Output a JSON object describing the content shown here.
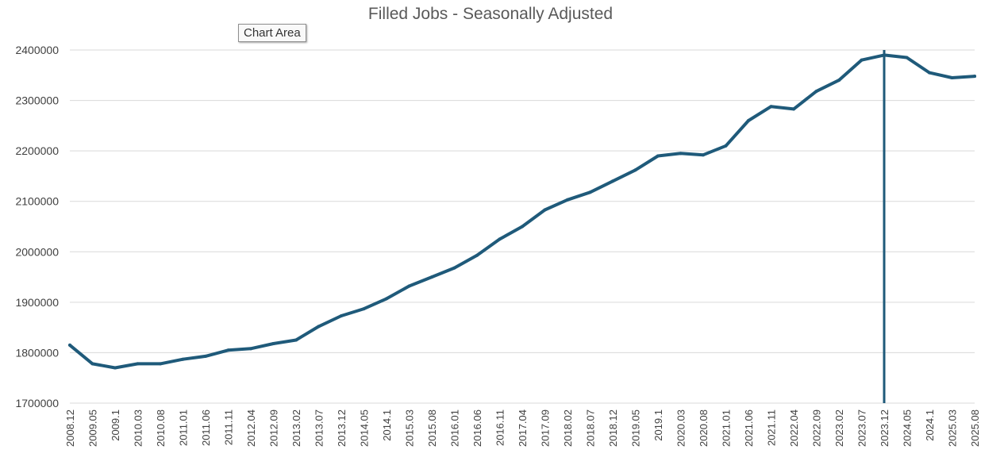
{
  "tooltip": "Chart Area",
  "chart_data": {
    "type": "line",
    "title": "Filled Jobs - Seasonally Adjusted",
    "xlabel": "",
    "ylabel": "",
    "ylim": [
      1700000,
      2400000
    ],
    "yticks": [
      1700000,
      1800000,
      1900000,
      2000000,
      2100000,
      2200000,
      2300000,
      2400000
    ],
    "grid": true,
    "colors": {
      "line": "#1f5a7a",
      "grid": "#d9d9d9",
      "tick_text": "#404040"
    },
    "x_tick_labels": [
      "2008.12",
      "2009.05",
      "2009.1",
      "2010.03",
      "2010.08",
      "2011.01",
      "2011.06",
      "2011.11",
      "2012.04",
      "2012.09",
      "2013.02",
      "2013.07",
      "2013.12",
      "2014.05",
      "2014.1",
      "2015.03",
      "2015.08",
      "2016.01",
      "2016.06",
      "2016.11",
      "2017.04",
      "2017.09",
      "2018.02",
      "2018.07",
      "2018.12",
      "2019.05",
      "2019.1",
      "2020.03",
      "2020.08",
      "2021.01",
      "2021.06",
      "2021.11",
      "2022.04",
      "2022.09",
      "2023.02",
      "2023.07",
      "2023.12",
      "2024.05",
      "2024.1",
      "2025.03",
      "2025.08"
    ],
    "marker_line_x": "2023.12",
    "series": [
      {
        "x": [
          "2008.12",
          "2009.05",
          "2009.1",
          "2010.03",
          "2010.08",
          "2011.01",
          "2011.06",
          "2011.11",
          "2012.04",
          "2012.09",
          "2013.02",
          "2013.07",
          "2013.12",
          "2014.05",
          "2014.1",
          "2015.03",
          "2015.08",
          "2016.01",
          "2016.06",
          "2016.11",
          "2017.04",
          "2017.09",
          "2018.02",
          "2018.07",
          "2018.12",
          "2019.05",
          "2019.1",
          "2020.03",
          "2020.08",
          "2021.01",
          "2021.06",
          "2021.11",
          "2022.04",
          "2022.09",
          "2023.02",
          "2023.07",
          "2023.12",
          "2024.05",
          "2024.1",
          "2025.03",
          "2025.08"
        ],
        "values": [
          1815000,
          1778000,
          1770000,
          1778000,
          1778000,
          1787000,
          1793000,
          1805000,
          1808000,
          1818000,
          1825000,
          1852000,
          1873000,
          1887000,
          1907000,
          1932000,
          1950000,
          1968000,
          1993000,
          2025000,
          2050000,
          2083000,
          2103000,
          2118000,
          2140000,
          2162000,
          2190000,
          2195000,
          2192000,
          2210000,
          2260000,
          2288000,
          2283000,
          2318000,
          2340000,
          2380000,
          2390000,
          2385000,
          2355000,
          2345000,
          2348000
        ]
      }
    ]
  }
}
